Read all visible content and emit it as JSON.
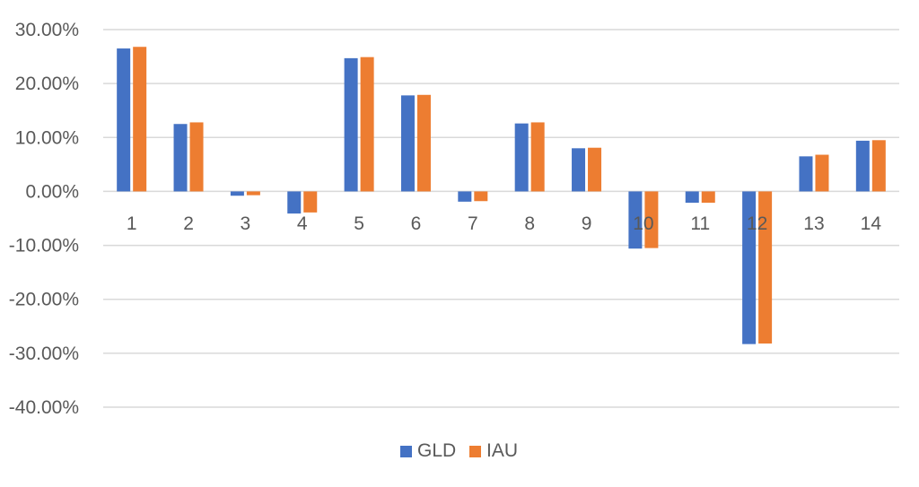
{
  "chart_data": {
    "type": "bar",
    "categories": [
      "1",
      "2",
      "3",
      "4",
      "5",
      "6",
      "7",
      "8",
      "9",
      "10",
      "11",
      "12",
      "13",
      "14"
    ],
    "series": [
      {
        "name": "GLD",
        "color": "#4472c4",
        "values": [
          26.5,
          12.5,
          -0.8,
          -4.1,
          24.7,
          17.8,
          -1.9,
          12.6,
          8.0,
          -10.6,
          -2.1,
          -28.3,
          6.5,
          9.4
        ]
      },
      {
        "name": "IAU",
        "color": "#ed7d31",
        "values": [
          26.8,
          12.8,
          -0.7,
          -3.9,
          24.9,
          17.9,
          -1.8,
          12.8,
          8.1,
          -10.5,
          -2.1,
          -28.2,
          6.8,
          9.5
        ]
      }
    ],
    "yticks": [
      "30.00%",
      "20.00%",
      "10.00%",
      "0.00%",
      "-10.00%",
      "-20.00%",
      "-30.00%",
      "-40.00%"
    ],
    "ytick_values": [
      30,
      20,
      10,
      0,
      -10,
      -20,
      -30,
      -40
    ],
    "ylim": [
      -40,
      30
    ],
    "title": "",
    "xlabel": "",
    "ylabel": "",
    "grid": true,
    "legend_position": "bottom-center"
  }
}
